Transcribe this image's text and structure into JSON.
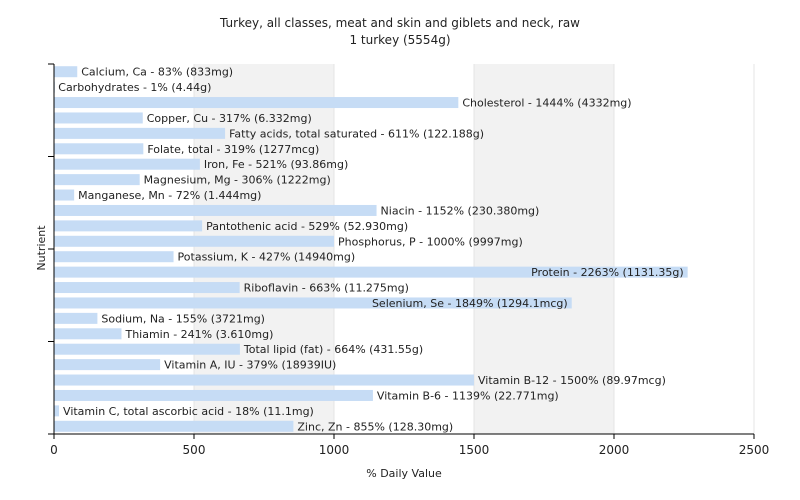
{
  "chart_data": {
    "type": "bar",
    "orientation": "horizontal",
    "title": "Turkey, all classes, meat and skin and giblets and neck, raw",
    "subtitle": "1 turkey (5554g)",
    "xlabel": "% Daily Value",
    "ylabel": "Nutrient",
    "xlim": [
      0,
      2500
    ],
    "xticks": [
      0,
      500,
      1000,
      1500,
      2000,
      2500
    ],
    "grid": true,
    "bar_color": "#c6dcf5",
    "categories": [
      "Calcium, Ca",
      "Carbohydrates",
      "Cholesterol",
      "Copper, Cu",
      "Fatty acids, total saturated",
      "Folate, total",
      "Iron, Fe",
      "Magnesium, Mg",
      "Manganese, Mn",
      "Niacin",
      "Pantothenic acid",
      "Phosphorus, P",
      "Potassium, K",
      "Protein",
      "Riboflavin",
      "Selenium, Se",
      "Sodium, Na",
      "Thiamin",
      "Total lipid (fat)",
      "Vitamin A, IU",
      "Vitamin B-12",
      "Vitamin B-6",
      "Vitamin C, total ascorbic acid",
      "Zinc, Zn"
    ],
    "values": [
      83,
      1,
      1444,
      317,
      611,
      319,
      521,
      306,
      72,
      1152,
      529,
      1000,
      427,
      2263,
      663,
      1849,
      155,
      241,
      664,
      379,
      1500,
      1139,
      18,
      855
    ],
    "labels": [
      "Calcium, Ca - 83% (833mg)",
      "Carbohydrates - 1% (4.44g)",
      "Cholesterol - 1444% (4332mg)",
      "Copper, Cu - 317% (6.332mg)",
      "Fatty acids, total saturated - 611% (122.188g)",
      "Folate, total - 319% (1277mcg)",
      "Iron, Fe - 521% (93.86mg)",
      "Magnesium, Mg - 306% (1222mg)",
      "Manganese, Mn - 72% (1.444mg)",
      "Niacin - 1152% (230.380mg)",
      "Pantothenic acid - 529% (52.930mg)",
      "Phosphorus, P - 1000% (9997mg)",
      "Potassium, K - 427% (14940mg)",
      "Protein - 2263% (1131.35g)",
      "Riboflavin - 663% (11.275mg)",
      "Selenium, Se - 1849% (1294.1mcg)",
      "Sodium, Na - 155% (3721mg)",
      "Thiamin - 241% (3.610mg)",
      "Total lipid (fat) - 664% (431.55g)",
      "Vitamin A, IU - 379% (18939IU)",
      "Vitamin B-12 - 1500% (89.97mcg)",
      "Vitamin B-6 - 1139% (22.771mg)",
      "Vitamin C, total ascorbic acid - 18% (11.1mg)",
      "Zinc, Zn - 855% (128.30mg)"
    ]
  }
}
